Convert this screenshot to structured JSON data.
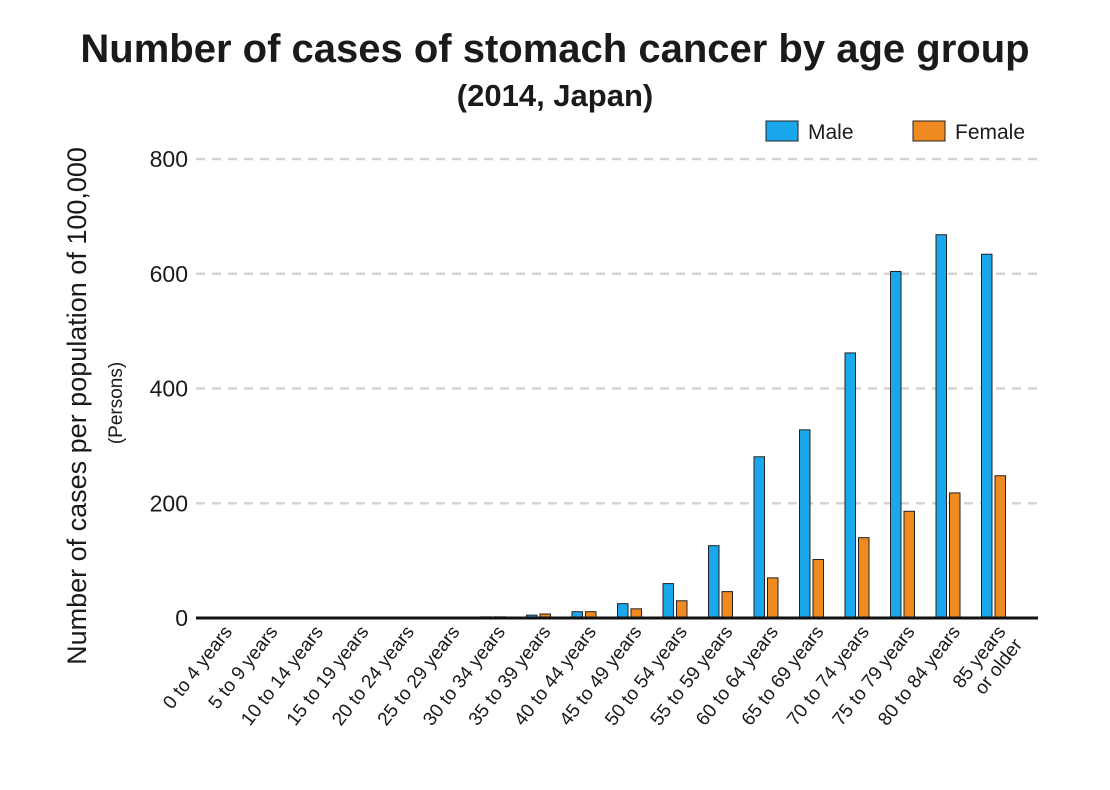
{
  "chart_data": {
    "type": "bar",
    "title": "Number of cases of stomach cancer by age group",
    "subtitle": "(2014, Japan)",
    "ylabel": "Number of cases per population of 100,000",
    "ylabel_unit": "(Persons)",
    "xlabel": "",
    "ylim": [
      0,
      800
    ],
    "yticks": [
      0,
      200,
      400,
      600,
      800
    ],
    "grid": true,
    "legend_position": "top-right",
    "categories": [
      "0 to 4 years",
      "5 to 9 years",
      "10 to 14 years",
      "15 to 19 years",
      "20 to 24 years",
      "25 to 29 years",
      "30 to 34 years",
      "35 to 39 years",
      "40 to 44 years",
      "45 to 49 years",
      "50 to 54 years",
      "55 to 59 years",
      "60 to 64 years",
      "65 to 69 years",
      "70 to 74 years",
      "75 to 79 years",
      "80 to 84 years",
      "85 years\nor older"
    ],
    "series": [
      {
        "name": "Male",
        "color": "#1aa7ec",
        "values": [
          0,
          0,
          0,
          0,
          0.3,
          0.5,
          2,
          5,
          11,
          25,
          60,
          126,
          281,
          328,
          462,
          604,
          668,
          634
        ]
      },
      {
        "name": "Female",
        "color": "#ee8a1f",
        "values": [
          0,
          0,
          0,
          0,
          0.3,
          0.8,
          2,
          7,
          11,
          16,
          30,
          46,
          70,
          102,
          140,
          186,
          218,
          248
        ]
      }
    ]
  }
}
